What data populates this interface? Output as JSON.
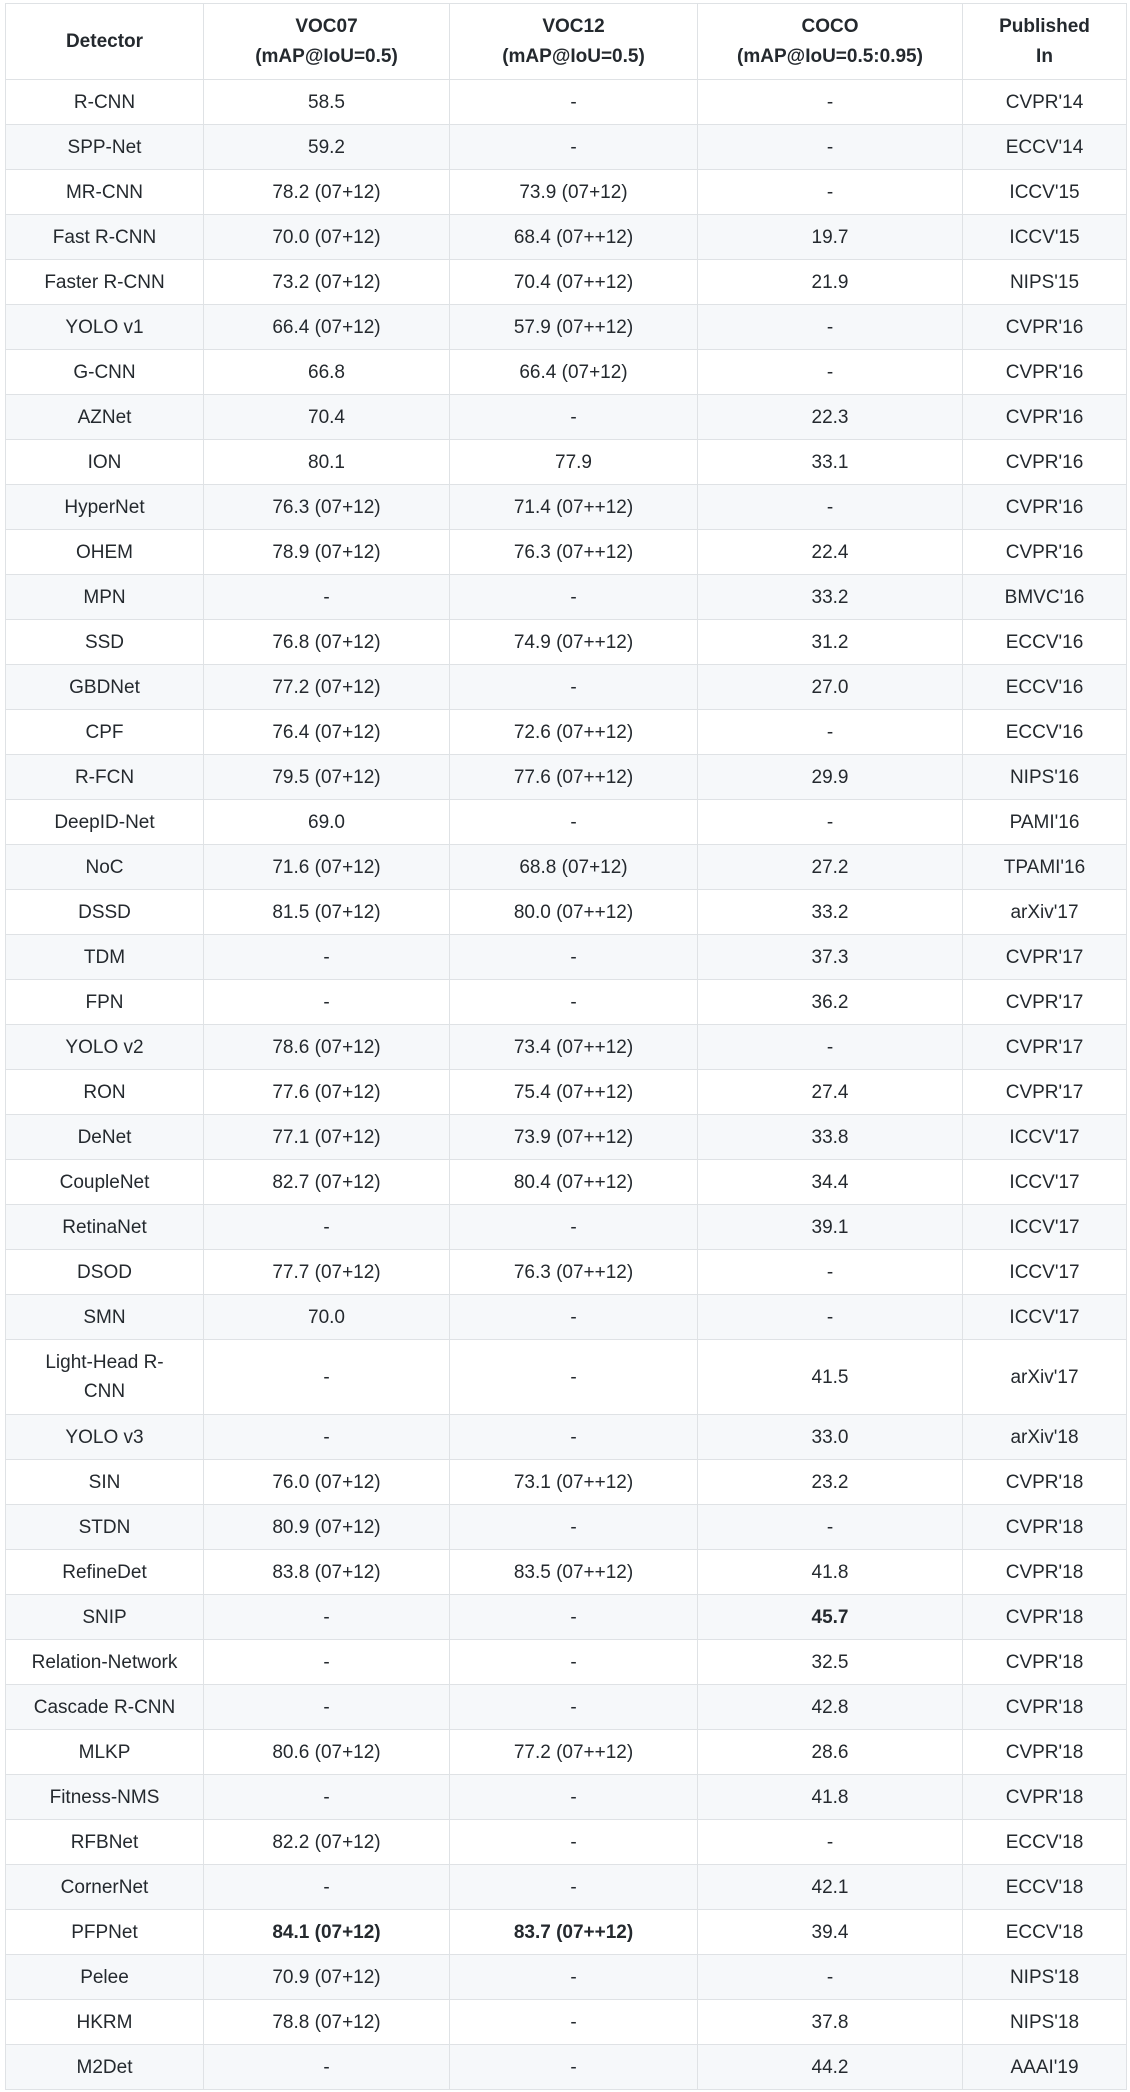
{
  "columns": [
    {
      "line1": "Detector",
      "line2": ""
    },
    {
      "line1": "VOC07",
      "line2": "(mAP@IoU=0.5)"
    },
    {
      "line1": "VOC12",
      "line2": "(mAP@IoU=0.5)"
    },
    {
      "line1": "COCO",
      "line2": "(mAP@IoU=0.5:0.95)"
    },
    {
      "line1": "Published",
      "line2": "In"
    }
  ],
  "rows": [
    {
      "detector": "R-CNN",
      "voc07": "58.5",
      "voc12": "-",
      "coco": "-",
      "published": "CVPR'14"
    },
    {
      "detector": "SPP-Net",
      "voc07": "59.2",
      "voc12": "-",
      "coco": "-",
      "published": "ECCV'14"
    },
    {
      "detector": "MR-CNN",
      "voc07": "78.2 (07+12)",
      "voc12": "73.9 (07+12)",
      "coco": "-",
      "published": "ICCV'15"
    },
    {
      "detector": "Fast R-CNN",
      "voc07": "70.0 (07+12)",
      "voc12": "68.4 (07++12)",
      "coco": "19.7",
      "published": "ICCV'15"
    },
    {
      "detector": "Faster R-CNN",
      "voc07": "73.2 (07+12)",
      "voc12": "70.4 (07++12)",
      "coco": "21.9",
      "published": "NIPS'15"
    },
    {
      "detector": "YOLO v1",
      "voc07": "66.4 (07+12)",
      "voc12": "57.9 (07++12)",
      "coco": "-",
      "published": "CVPR'16"
    },
    {
      "detector": "G-CNN",
      "voc07": "66.8",
      "voc12": "66.4 (07+12)",
      "coco": "-",
      "published": "CVPR'16"
    },
    {
      "detector": "AZNet",
      "voc07": "70.4",
      "voc12": "-",
      "coco": "22.3",
      "published": "CVPR'16"
    },
    {
      "detector": "ION",
      "voc07": "80.1",
      "voc12": "77.9",
      "coco": "33.1",
      "published": "CVPR'16"
    },
    {
      "detector": "HyperNet",
      "voc07": "76.3 (07+12)",
      "voc12": "71.4 (07++12)",
      "coco": "-",
      "published": "CVPR'16"
    },
    {
      "detector": "OHEM",
      "voc07": "78.9 (07+12)",
      "voc12": "76.3 (07++12)",
      "coco": "22.4",
      "published": "CVPR'16"
    },
    {
      "detector": "MPN",
      "voc07": "-",
      "voc12": "-",
      "coco": "33.2",
      "published": "BMVC'16"
    },
    {
      "detector": "SSD",
      "voc07": "76.8 (07+12)",
      "voc12": "74.9 (07++12)",
      "coco": "31.2",
      "published": "ECCV'16"
    },
    {
      "detector": "GBDNet",
      "voc07": "77.2 (07+12)",
      "voc12": "-",
      "coco": "27.0",
      "published": "ECCV'16"
    },
    {
      "detector": "CPF",
      "voc07": "76.4 (07+12)",
      "voc12": "72.6 (07++12)",
      "coco": "-",
      "published": "ECCV'16"
    },
    {
      "detector": "R-FCN",
      "voc07": "79.5 (07+12)",
      "voc12": "77.6 (07++12)",
      "coco": "29.9",
      "published": "NIPS'16"
    },
    {
      "detector": "DeepID-Net",
      "voc07": "69.0",
      "voc12": "-",
      "coco": "-",
      "published": "PAMI'16"
    },
    {
      "detector": "NoC",
      "voc07": "71.6 (07+12)",
      "voc12": "68.8 (07+12)",
      "coco": "27.2",
      "published": "TPAMI'16"
    },
    {
      "detector": "DSSD",
      "voc07": "81.5 (07+12)",
      "voc12": "80.0 (07++12)",
      "coco": "33.2",
      "published": "arXiv'17"
    },
    {
      "detector": "TDM",
      "voc07": "-",
      "voc12": "-",
      "coco": "37.3",
      "published": "CVPR'17"
    },
    {
      "detector": "FPN",
      "voc07": "-",
      "voc12": "-",
      "coco": "36.2",
      "published": "CVPR'17"
    },
    {
      "detector": "YOLO v2",
      "voc07": "78.6 (07+12)",
      "voc12": "73.4 (07++12)",
      "coco": "-",
      "published": "CVPR'17"
    },
    {
      "detector": "RON",
      "voc07": "77.6 (07+12)",
      "voc12": "75.4 (07++12)",
      "coco": "27.4",
      "published": "CVPR'17"
    },
    {
      "detector": "DeNet",
      "voc07": "77.1 (07+12)",
      "voc12": "73.9 (07++12)",
      "coco": "33.8",
      "published": "ICCV'17"
    },
    {
      "detector": "CoupleNet",
      "voc07": "82.7 (07+12)",
      "voc12": "80.4 (07++12)",
      "coco": "34.4",
      "published": "ICCV'17"
    },
    {
      "detector": "RetinaNet",
      "voc07": "-",
      "voc12": "-",
      "coco": "39.1",
      "published": "ICCV'17"
    },
    {
      "detector": "DSOD",
      "voc07": "77.7 (07+12)",
      "voc12": "76.3 (07++12)",
      "coco": "-",
      "published": "ICCV'17"
    },
    {
      "detector": "SMN",
      "voc07": "70.0",
      "voc12": "-",
      "coco": "-",
      "published": "ICCV'17"
    },
    {
      "detector": "Light-Head R-CNN",
      "detector_l1": "Light-Head R-",
      "detector_l2": "CNN",
      "voc07": "-",
      "voc12": "-",
      "coco": "41.5",
      "published": "arXiv'17"
    },
    {
      "detector": "YOLO v3",
      "voc07": "-",
      "voc12": "-",
      "coco": "33.0",
      "published": "arXiv'18"
    },
    {
      "detector": "SIN",
      "voc07": "76.0 (07+12)",
      "voc12": "73.1 (07++12)",
      "coco": "23.2",
      "published": "CVPR'18"
    },
    {
      "detector": "STDN",
      "voc07": "80.9 (07+12)",
      "voc12": "-",
      "coco": "-",
      "published": "CVPR'18"
    },
    {
      "detector": "RefineDet",
      "voc07": "83.8 (07+12)",
      "voc12": "83.5 (07++12)",
      "coco": "41.8",
      "published": "CVPR'18"
    },
    {
      "detector": "SNIP",
      "voc07": "-",
      "voc12": "-",
      "coco": "45.7",
      "coco_bold": true,
      "published": "CVPR'18"
    },
    {
      "detector": "Relation-Network",
      "voc07": "-",
      "voc12": "-",
      "coco": "32.5",
      "published": "CVPR'18"
    },
    {
      "detector": "Cascade R-CNN",
      "voc07": "-",
      "voc12": "-",
      "coco": "42.8",
      "published": "CVPR'18"
    },
    {
      "detector": "MLKP",
      "voc07": "80.6 (07+12)",
      "voc12": "77.2 (07++12)",
      "coco": "28.6",
      "published": "CVPR'18"
    },
    {
      "detector": "Fitness-NMS",
      "voc07": "-",
      "voc12": "-",
      "coco": "41.8",
      "published": "CVPR'18"
    },
    {
      "detector": "RFBNet",
      "voc07": "82.2 (07+12)",
      "voc12": "-",
      "coco": "-",
      "published": "ECCV'18"
    },
    {
      "detector": "CornerNet",
      "voc07": "-",
      "voc12": "-",
      "coco": "42.1",
      "published": "ECCV'18"
    },
    {
      "detector": "PFPNet",
      "voc07": "84.1 (07+12)",
      "voc07_bold": true,
      "voc12": "83.7 (07++12)",
      "voc12_bold": true,
      "coco": "39.4",
      "published": "ECCV'18"
    },
    {
      "detector": "Pelee",
      "voc07": "70.9 (07+12)",
      "voc12": "-",
      "coco": "-",
      "published": "NIPS'18"
    },
    {
      "detector": "HKRM",
      "voc07": "78.8 (07+12)",
      "voc12": "-",
      "coco": "37.8",
      "published": "NIPS'18"
    },
    {
      "detector": "M2Det",
      "voc07": "-",
      "voc12": "-",
      "coco": "44.2",
      "published": "AAAI'19"
    }
  ]
}
